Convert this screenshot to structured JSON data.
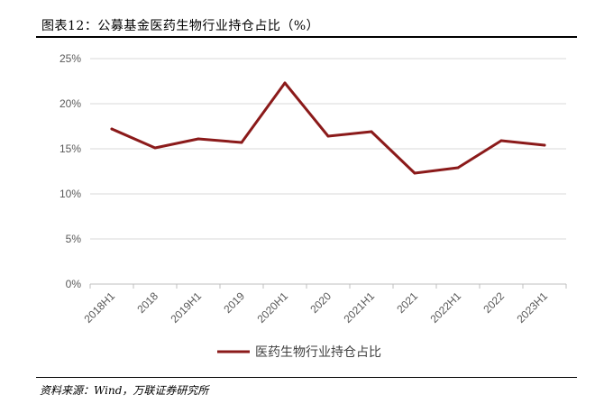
{
  "header": {
    "title": "图表12：公募基金医药生物行业持仓占比（%）"
  },
  "footer": {
    "source": "资料来源：Wind，万联证券研究所"
  },
  "chart_data": {
    "type": "line",
    "title": "",
    "xlabel": "",
    "ylabel": "",
    "categories": [
      "2018H1",
      "2018",
      "2019H1",
      "2019",
      "2020H1",
      "2020",
      "2021H1",
      "2021",
      "2022H1",
      "2022",
      "2023H1"
    ],
    "series": [
      {
        "name": "医药生物行业持仓占比",
        "values": [
          17.2,
          15.1,
          16.1,
          15.7,
          22.3,
          16.4,
          16.9,
          12.3,
          12.9,
          15.9,
          15.4
        ],
        "color": "#8b1a1a"
      }
    ],
    "ylim": [
      0,
      25
    ],
    "yticks": [
      0,
      5,
      10,
      15,
      20,
      25
    ],
    "ytick_labels": [
      "0%",
      "5%",
      "10%",
      "15%",
      "20%",
      "25%"
    ],
    "grid": "horizontal",
    "legend_position": "bottom-center"
  }
}
